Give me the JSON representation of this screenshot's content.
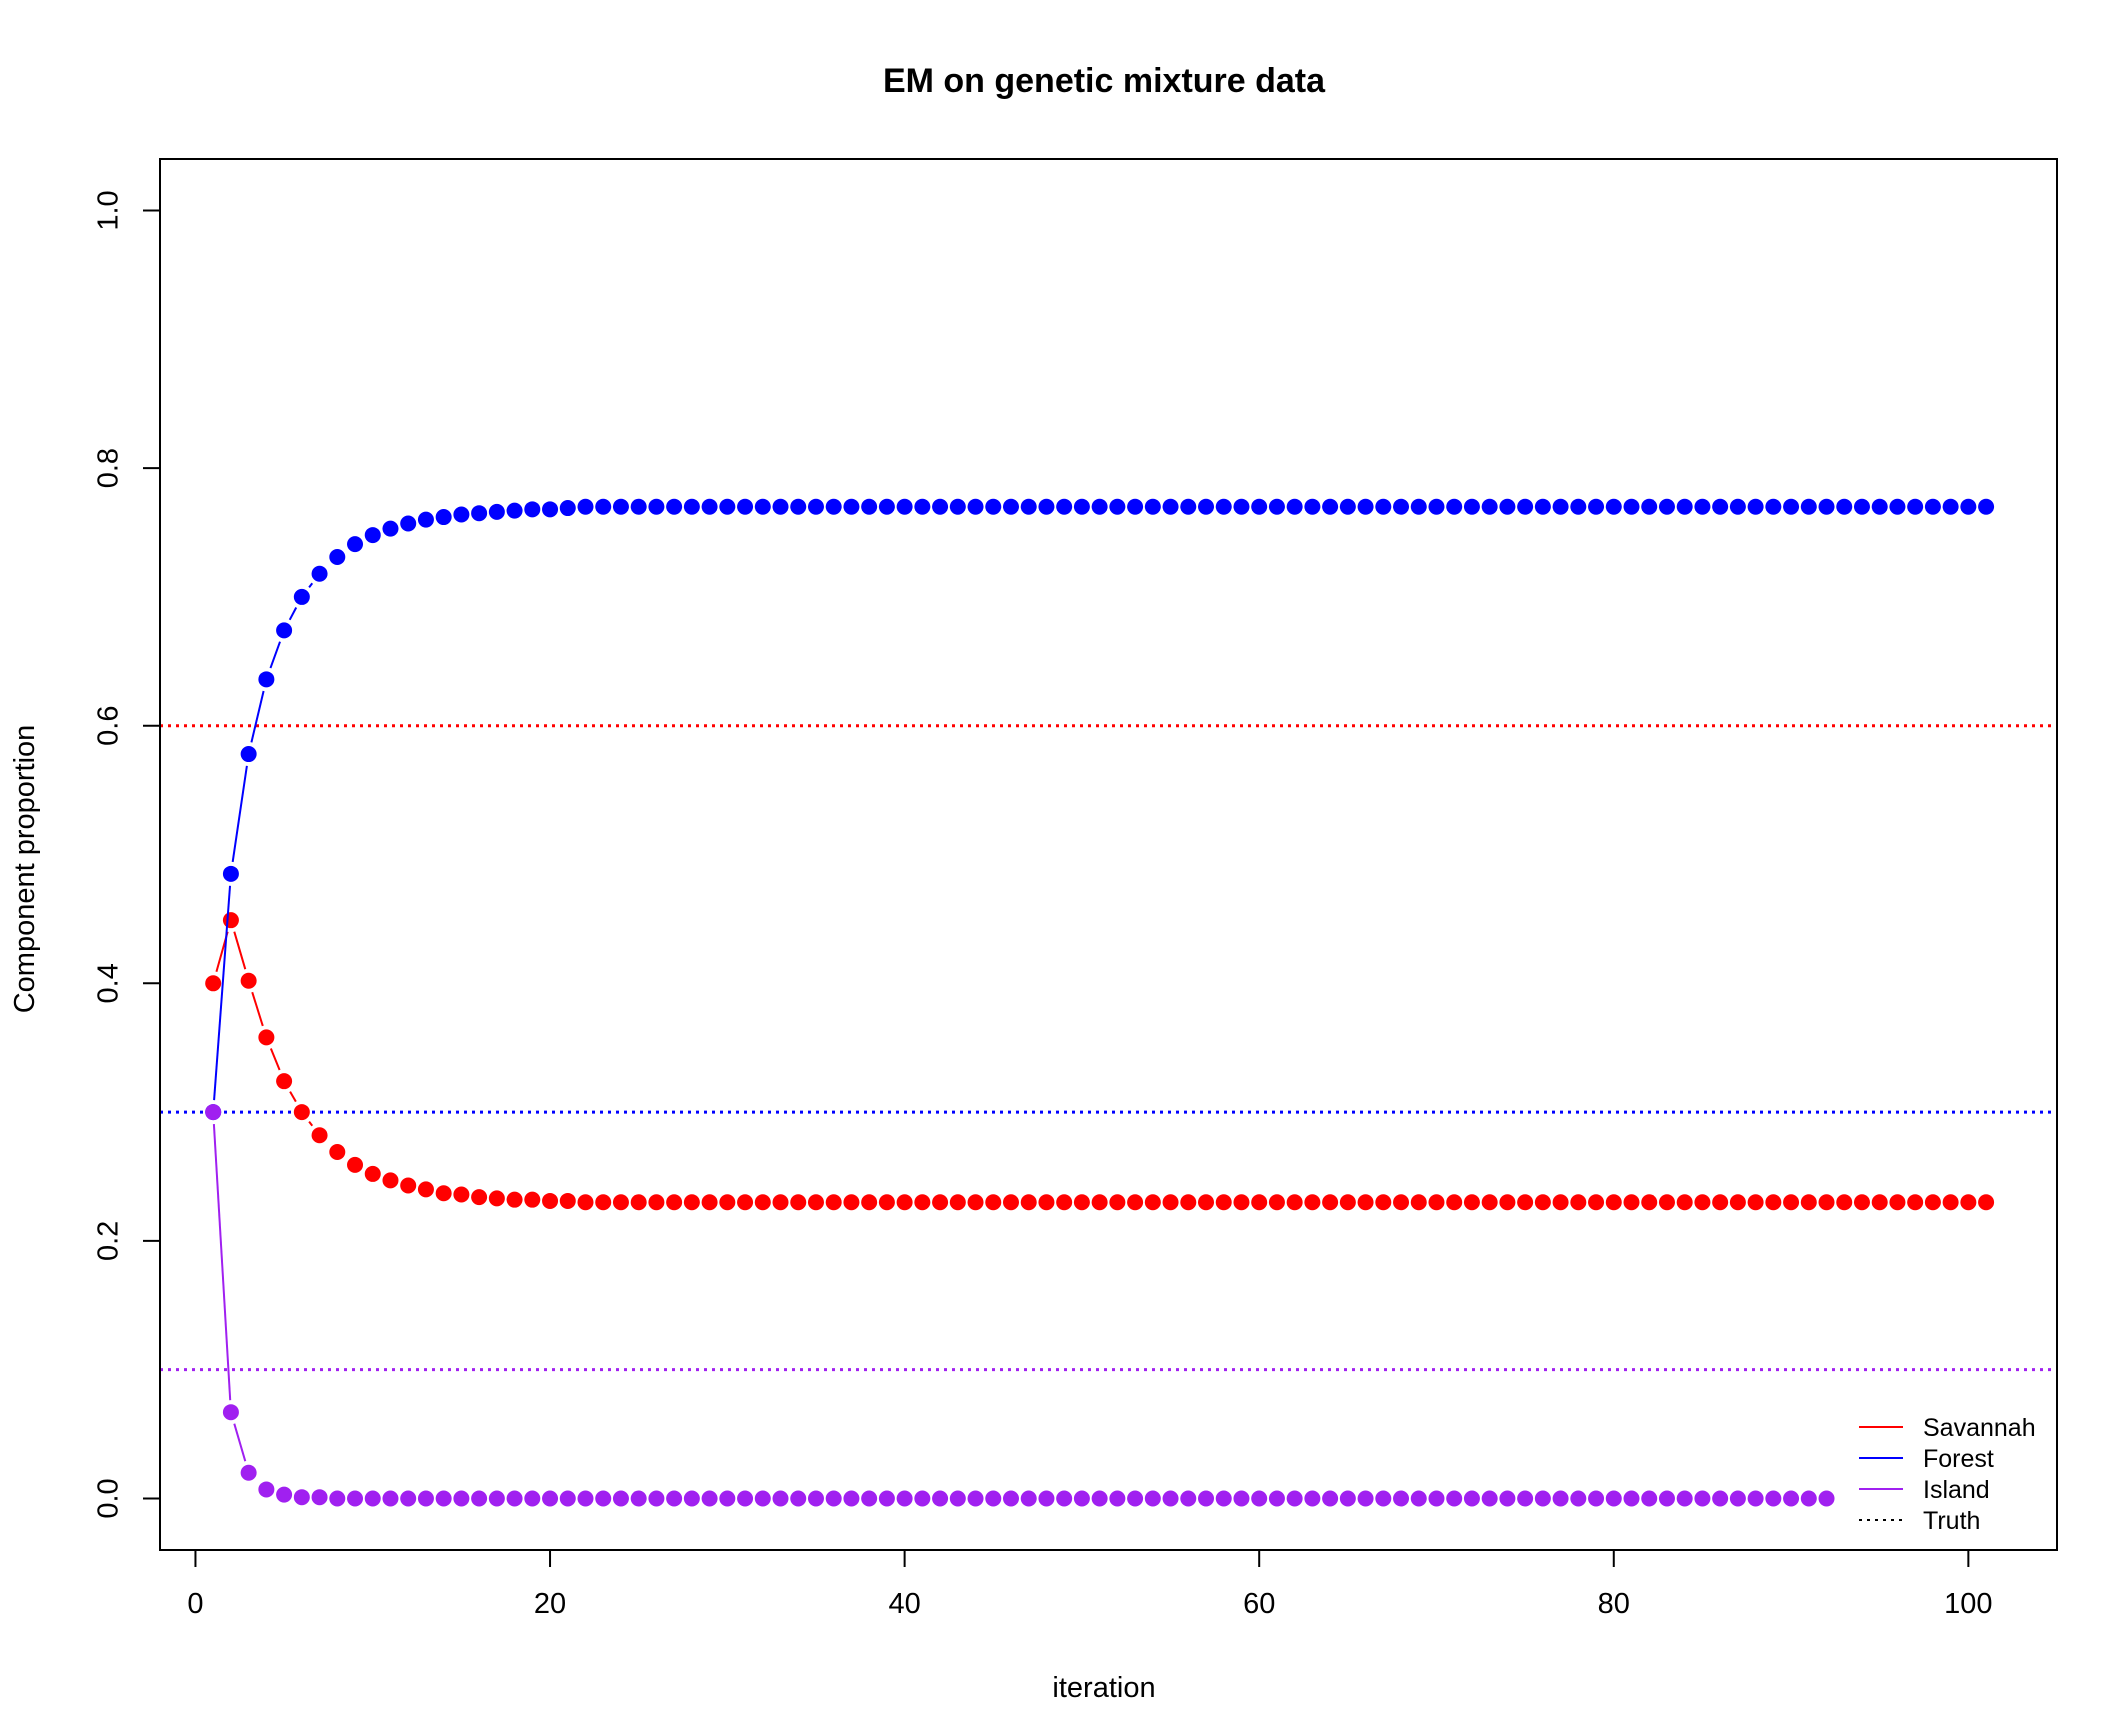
{
  "chart_data": {
    "type": "line",
    "title": "EM on genetic mixture data",
    "xlabel": "iteration",
    "ylabel": "Component proportion",
    "xlim": [
      -2,
      105
    ],
    "ylim": [
      -0.04,
      1.04
    ],
    "x_ticks": [
      0,
      20,
      40,
      60,
      80,
      100
    ],
    "x_tick_labels": [
      "0",
      "20",
      "40",
      "60",
      "80",
      "100"
    ],
    "y_ticks": [
      0.0,
      0.2,
      0.4,
      0.6,
      0.8,
      1.0
    ],
    "y_tick_labels": [
      "0.0",
      "0.2",
      "0.4",
      "0.6",
      "0.8",
      "1.0"
    ],
    "x": {
      "from": 1,
      "to": 101
    },
    "series": [
      {
        "name": "Savannah",
        "color": "#ff0000",
        "initial_values": [
          0.4,
          0.449,
          0.402,
          0.358,
          0.324,
          0.3,
          0.282,
          0.269,
          0.259,
          0.252,
          0.247,
          0.243,
          0.24,
          0.237,
          0.236,
          0.234,
          0.233,
          0.232,
          0.232,
          0.231,
          0.231
        ],
        "converged_value": 0.23
      },
      {
        "name": "Forest",
        "color": "#0000ff",
        "initial_values": [
          0.3,
          0.485,
          0.578,
          0.636,
          0.674,
          0.7,
          0.718,
          0.731,
          0.741,
          0.748,
          0.753,
          0.757,
          0.76,
          0.762,
          0.764,
          0.765,
          0.766,
          0.767,
          0.768,
          0.768,
          0.769
        ],
        "converged_value": 0.77
      },
      {
        "name": "Island",
        "color": "#a020f0",
        "initial_values": [
          0.3,
          0.067,
          0.02,
          0.007,
          0.003,
          0.001,
          0.001,
          0.0
        ],
        "converged_value": 0.0
      }
    ],
    "truth_lines": [
      {
        "series": "Savannah",
        "value": 0.6,
        "color": "#ff0000"
      },
      {
        "series": "Forest",
        "value": 0.3,
        "color": "#0000ff"
      },
      {
        "series": "Island",
        "value": 0.1,
        "color": "#a020f0"
      }
    ],
    "legend": {
      "position": "bottom-right",
      "entries": [
        {
          "label": "Savannah",
          "color": "#ff0000",
          "style": "solid"
        },
        {
          "label": "Forest",
          "color": "#0000ff",
          "style": "solid"
        },
        {
          "label": "Island",
          "color": "#a020f0",
          "style": "solid"
        },
        {
          "label": "Truth",
          "color": "#000000",
          "style": "dotted"
        }
      ]
    }
  }
}
